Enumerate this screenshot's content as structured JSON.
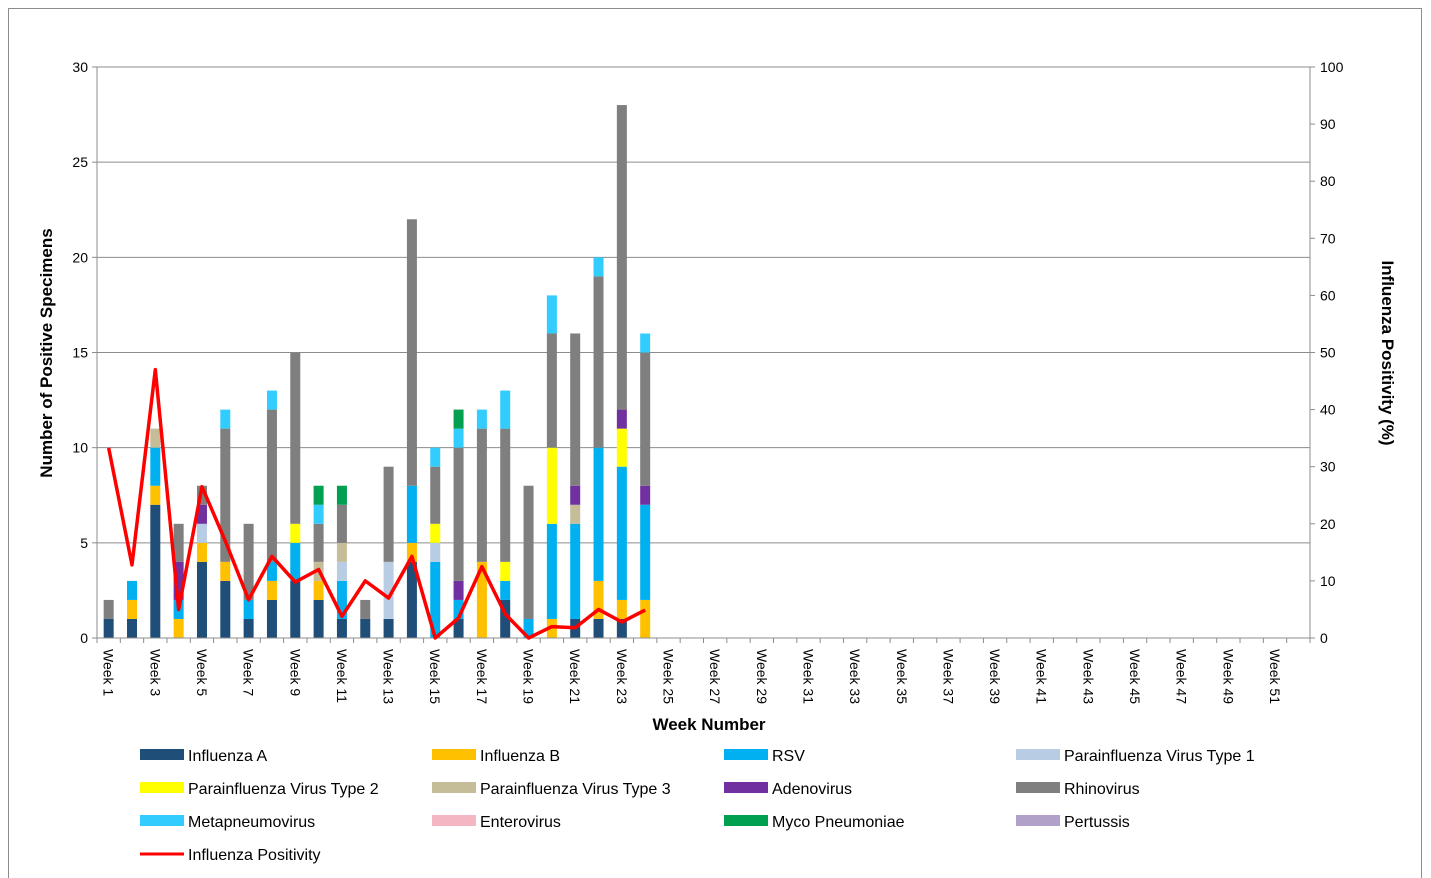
{
  "chart_data": {
    "type": "bar",
    "stacked": true,
    "title": "",
    "xlabel": "Week Number",
    "ylabel": "Number of Positive Specimens",
    "y2label": "Influenza Positivity (%)",
    "ylim": [
      0,
      30
    ],
    "yticks": [
      0,
      5,
      10,
      15,
      20,
      25,
      30
    ],
    "y2lim": [
      0,
      100
    ],
    "y2ticks": [
      0,
      10,
      20,
      30,
      40,
      50,
      60,
      70,
      80,
      90,
      100
    ],
    "grid": true,
    "legend_position": "bottom",
    "categories": [
      "Week 1",
      "Week 2",
      "Week 3",
      "Week 4",
      "Week 5",
      "Week 6",
      "Week 7",
      "Week 8",
      "Week 9",
      "Week 10",
      "Week 11",
      "Week 12",
      "Week 13",
      "Week 14",
      "Week 15",
      "Week 16",
      "Week 17",
      "Week 18",
      "Week 19",
      "Week 20",
      "Week 21",
      "Week 22",
      "Week 23",
      "Week 24",
      "Week 25",
      "Week 26",
      "Week 27",
      "Week 28",
      "Week 29",
      "Week 30",
      "Week 31",
      "Week 32",
      "Week 33",
      "Week 34",
      "Week 35",
      "Week 36",
      "Week 37",
      "Week 38",
      "Week 39",
      "Week 40",
      "Week 41",
      "Week 42",
      "Week 43",
      "Week 44",
      "Week 45",
      "Week 46",
      "Week 47",
      "Week 48",
      "Week 49",
      "Week 50",
      "Week 51",
      "Week 52"
    ],
    "series": [
      {
        "name": "Influenza A",
        "color": "#1f4e79",
        "values": [
          1,
          1,
          7,
          0,
          4,
          3,
          1,
          2,
          3,
          2,
          1,
          1,
          1,
          4,
          0,
          1,
          0,
          2,
          0,
          0,
          1,
          1,
          1,
          0,
          0,
          0,
          0,
          0,
          0,
          0,
          0,
          0,
          0,
          0,
          0,
          0,
          0,
          0,
          0,
          0,
          0,
          0,
          0,
          0,
          0,
          0,
          0,
          0,
          0,
          0,
          0,
          0
        ]
      },
      {
        "name": "Influenza B",
        "color": "#ffc000",
        "values": [
          0,
          1,
          1,
          1,
          1,
          1,
          0,
          1,
          0,
          1,
          0,
          0,
          0,
          1,
          0,
          0,
          4,
          0,
          0,
          1,
          0,
          2,
          1,
          2,
          0,
          0,
          0,
          0,
          0,
          0,
          0,
          0,
          0,
          0,
          0,
          0,
          0,
          0,
          0,
          0,
          0,
          0,
          0,
          0,
          0,
          0,
          0,
          0,
          0,
          0,
          0,
          0
        ]
      },
      {
        "name": "RSV",
        "color": "#00b0f0",
        "values": [
          0,
          1,
          2,
          1,
          0,
          0,
          1,
          1,
          2,
          0,
          2,
          0,
          0,
          3,
          4,
          1,
          0,
          1,
          1,
          5,
          5,
          7,
          7,
          5,
          0,
          0,
          0,
          0,
          0,
          0,
          0,
          0,
          0,
          0,
          0,
          0,
          0,
          0,
          0,
          0,
          0,
          0,
          0,
          0,
          0,
          0,
          0,
          0,
          0,
          0,
          0,
          0
        ]
      },
      {
        "name": "Parainfluenza Virus Type 1",
        "color": "#b8cce4",
        "values": [
          0,
          0,
          0,
          0,
          1,
          0,
          0,
          0,
          0,
          0,
          1,
          0,
          3,
          0,
          1,
          0,
          0,
          0,
          0,
          0,
          0,
          0,
          0,
          0,
          0,
          0,
          0,
          0,
          0,
          0,
          0,
          0,
          0,
          0,
          0,
          0,
          0,
          0,
          0,
          0,
          0,
          0,
          0,
          0,
          0,
          0,
          0,
          0,
          0,
          0,
          0,
          0
        ]
      },
      {
        "name": "Parainfluenza Virus Type 2",
        "color": "#ffff00",
        "values": [
          0,
          0,
          0,
          0,
          0,
          0,
          0,
          0,
          1,
          0,
          0,
          0,
          0,
          0,
          1,
          0,
          0,
          1,
          0,
          4,
          0,
          0,
          2,
          0,
          0,
          0,
          0,
          0,
          0,
          0,
          0,
          0,
          0,
          0,
          0,
          0,
          0,
          0,
          0,
          0,
          0,
          0,
          0,
          0,
          0,
          0,
          0,
          0,
          0,
          0,
          0,
          0
        ]
      },
      {
        "name": "Parainfluenza Virus Type 3",
        "color": "#c4bd97",
        "values": [
          0,
          0,
          1,
          0,
          0,
          0,
          0,
          0,
          0,
          1,
          1,
          0,
          0,
          0,
          0,
          0,
          0,
          0,
          0,
          0,
          1,
          0,
          0,
          0,
          0,
          0,
          0,
          0,
          0,
          0,
          0,
          0,
          0,
          0,
          0,
          0,
          0,
          0,
          0,
          0,
          0,
          0,
          0,
          0,
          0,
          0,
          0,
          0,
          0,
          0,
          0,
          0
        ]
      },
      {
        "name": "Adenovirus",
        "color": "#7030a0",
        "values": [
          0,
          0,
          0,
          2,
          1,
          0,
          0,
          0,
          0,
          0,
          0,
          0,
          0,
          0,
          0,
          1,
          0,
          0,
          0,
          0,
          1,
          0,
          1,
          1,
          0,
          0,
          0,
          0,
          0,
          0,
          0,
          0,
          0,
          0,
          0,
          0,
          0,
          0,
          0,
          0,
          0,
          0,
          0,
          0,
          0,
          0,
          0,
          0,
          0,
          0,
          0,
          0
        ]
      },
      {
        "name": "Rhinovirus",
        "color": "#7f7f7f",
        "values": [
          1,
          0,
          0,
          2,
          1,
          7,
          4,
          8,
          9,
          2,
          2,
          1,
          5,
          14,
          3,
          7,
          7,
          7,
          7,
          6,
          8,
          9,
          16,
          7,
          0,
          0,
          0,
          0,
          0,
          0,
          0,
          0,
          0,
          0,
          0,
          0,
          0,
          0,
          0,
          0,
          0,
          0,
          0,
          0,
          0,
          0,
          0,
          0,
          0,
          0,
          0,
          0
        ]
      },
      {
        "name": "Metapneumovirus",
        "color": "#33ccff",
        "values": [
          0,
          0,
          0,
          0,
          0,
          1,
          0,
          1,
          0,
          1,
          0,
          0,
          0,
          0,
          1,
          1,
          1,
          2,
          0,
          2,
          0,
          1,
          0,
          1,
          0,
          0,
          0,
          0,
          0,
          0,
          0,
          0,
          0,
          0,
          0,
          0,
          0,
          0,
          0,
          0,
          0,
          0,
          0,
          0,
          0,
          0,
          0,
          0,
          0,
          0,
          0,
          0
        ]
      },
      {
        "name": "Enterovirus",
        "color": "#f4b6c2",
        "values": [
          0,
          0,
          0,
          0,
          0,
          0,
          0,
          0,
          0,
          0,
          0,
          0,
          0,
          0,
          0,
          0,
          0,
          0,
          0,
          0,
          0,
          0,
          0,
          0,
          0,
          0,
          0,
          0,
          0,
          0,
          0,
          0,
          0,
          0,
          0,
          0,
          0,
          0,
          0,
          0,
          0,
          0,
          0,
          0,
          0,
          0,
          0,
          0,
          0,
          0,
          0,
          0
        ]
      },
      {
        "name": "Myco Pneumoniae",
        "color": "#00a050",
        "values": [
          0,
          0,
          0,
          0,
          0,
          0,
          0,
          0,
          0,
          1,
          1,
          0,
          0,
          0,
          0,
          1,
          0,
          0,
          0,
          0,
          0,
          0,
          0,
          0,
          0,
          0,
          0,
          0,
          0,
          0,
          0,
          0,
          0,
          0,
          0,
          0,
          0,
          0,
          0,
          0,
          0,
          0,
          0,
          0,
          0,
          0,
          0,
          0,
          0,
          0,
          0,
          0
        ]
      },
      {
        "name": "Pertussis",
        "color": "#b1a0c7",
        "values": [
          0,
          0,
          0,
          0,
          0,
          0,
          0,
          0,
          0,
          0,
          0,
          0,
          0,
          0,
          0,
          0,
          0,
          0,
          0,
          0,
          0,
          0,
          0,
          0,
          0,
          0,
          0,
          0,
          0,
          0,
          0,
          0,
          0,
          0,
          0,
          0,
          0,
          0,
          0,
          0,
          0,
          0,
          0,
          0,
          0,
          0,
          0,
          0,
          0,
          0,
          0,
          0
        ]
      }
    ],
    "line": {
      "name": "Influenza Positivity",
      "color": "#ff0000",
      "axis": "y2",
      "values": [
        33.3,
        12.8,
        47,
        5,
        26.5,
        17,
        6.7,
        14.3,
        9.8,
        12,
        3.8,
        10,
        7,
        14.3,
        0,
        3.5,
        12.5,
        4.2,
        0,
        2,
        1.8,
        5,
        2.8,
        4.9
      ]
    }
  }
}
